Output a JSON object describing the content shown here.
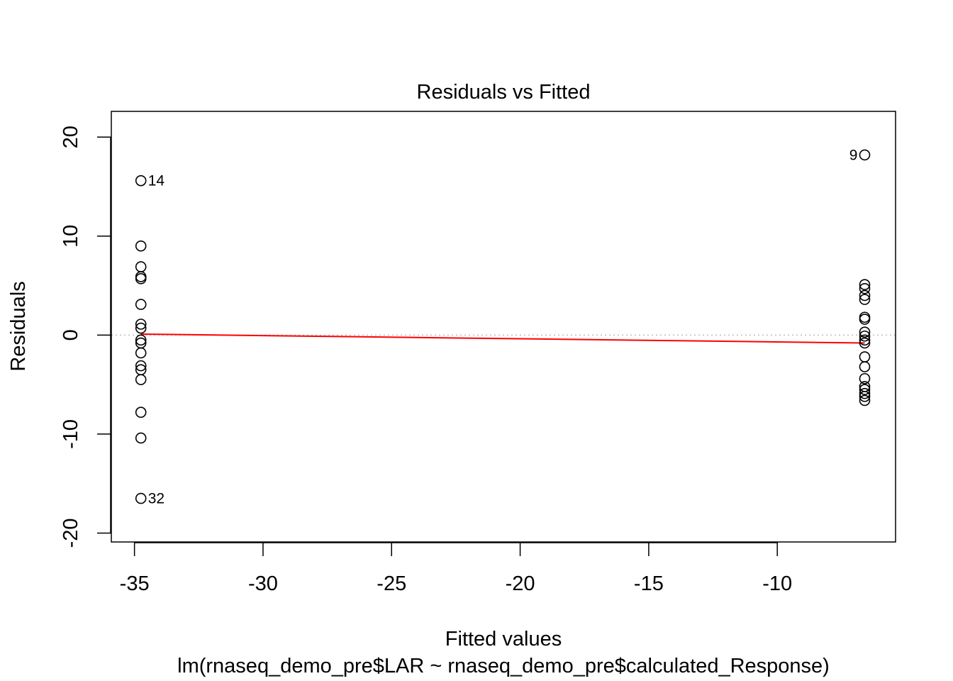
{
  "chart_data": {
    "type": "scatter",
    "title": "Residuals vs Fitted",
    "xlabel": "Fitted values",
    "subtitle": "lm(rnaseq_demo_pre$LAR ~ rnaseq_demo_pre$calculated_Response)",
    "ylabel": "Residuals",
    "xlim": [
      -35.9,
      -5.4
    ],
    "ylim": [
      -20.9,
      22.6
    ],
    "x_ticks": [
      -35,
      -30,
      -25,
      -20,
      -15,
      -10
    ],
    "x_tick_labels": [
      "-35",
      "-30",
      "-25",
      "-20",
      "-15",
      "-10"
    ],
    "y_ticks": [
      -20,
      -10,
      0,
      10,
      20
    ],
    "y_tick_labels": [
      "-20",
      "-10",
      "0",
      "10",
      "20"
    ],
    "grid": false,
    "reference_line": {
      "y": 0,
      "style": "dotted",
      "color": "#bebebe"
    },
    "smoother": {
      "color": "#ff0000",
      "x": [
        -34.75,
        -6.6
      ],
      "y": [
        0.1,
        -0.8
      ]
    },
    "series": [
      {
        "marker": "open-circle",
        "points": [
          {
            "x": -34.75,
            "y": 15.6,
            "label": "14"
          },
          {
            "x": -34.75,
            "y": 9.0
          },
          {
            "x": -34.75,
            "y": 6.9
          },
          {
            "x": -34.75,
            "y": 5.9
          },
          {
            "x": -34.75,
            "y": 5.7
          },
          {
            "x": -34.75,
            "y": 3.1
          },
          {
            "x": -34.75,
            "y": 1.1
          },
          {
            "x": -34.75,
            "y": 0.7
          },
          {
            "x": -34.75,
            "y": -0.5
          },
          {
            "x": -34.75,
            "y": -0.8
          },
          {
            "x": -34.75,
            "y": -1.8
          },
          {
            "x": -34.75,
            "y": -3.1
          },
          {
            "x": -34.75,
            "y": -3.5
          },
          {
            "x": -34.75,
            "y": -4.5
          },
          {
            "x": -34.75,
            "y": -7.8
          },
          {
            "x": -34.75,
            "y": -10.4
          },
          {
            "x": -34.75,
            "y": -16.5,
            "label": "32"
          },
          {
            "x": -6.6,
            "y": 18.2,
            "label": "9"
          },
          {
            "x": -6.6,
            "y": 5.1
          },
          {
            "x": -6.6,
            "y": 4.7
          },
          {
            "x": -6.6,
            "y": 4.0
          },
          {
            "x": -6.6,
            "y": 3.6
          },
          {
            "x": -6.6,
            "y": 1.8
          },
          {
            "x": -6.6,
            "y": 1.6
          },
          {
            "x": -6.6,
            "y": 0.3
          },
          {
            "x": -6.6,
            "y": -0.1
          },
          {
            "x": -6.6,
            "y": -0.5
          },
          {
            "x": -6.6,
            "y": -0.8
          },
          {
            "x": -6.6,
            "y": -2.2
          },
          {
            "x": -6.6,
            "y": -3.2
          },
          {
            "x": -6.6,
            "y": -4.4
          },
          {
            "x": -6.6,
            "y": -5.2
          },
          {
            "x": -6.6,
            "y": -5.5
          },
          {
            "x": -6.6,
            "y": -5.9
          },
          {
            "x": -6.6,
            "y": -6.2
          },
          {
            "x": -6.6,
            "y": -6.6
          }
        ]
      }
    ]
  }
}
